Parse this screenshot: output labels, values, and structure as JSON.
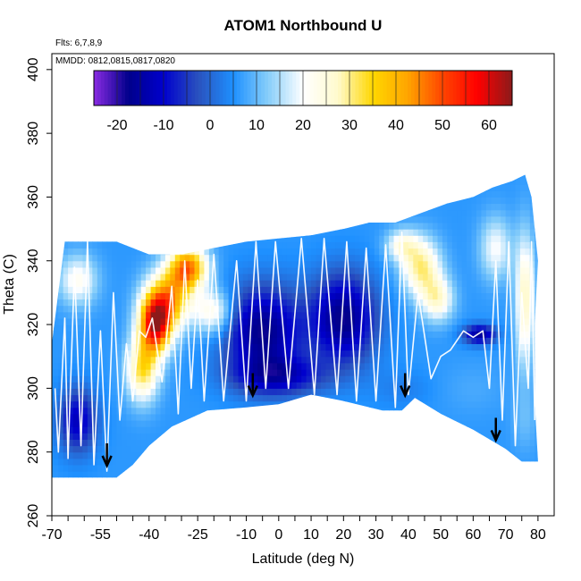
{
  "chart_data": {
    "type": "heatmap",
    "title": "ATOM1 Northbound U",
    "annotations": [
      "Flts: 6,7,8,9",
      "MMDD: 0812,0815,0817,0820"
    ],
    "xlabel": "Latitude (deg N)",
    "ylabel": "Theta (C)",
    "xlim": [
      -70,
      85
    ],
    "ylim": [
      260,
      405
    ],
    "x_ticks": [
      -70,
      -55,
      -40,
      -25,
      -10,
      0,
      10,
      20,
      30,
      40,
      50,
      60,
      70,
      80
    ],
    "x_minor_ticks": [
      -65,
      -60,
      -50,
      -45,
      -35,
      -30,
      -20,
      -15,
      -5,
      5,
      15,
      25,
      35,
      45,
      55,
      65,
      75
    ],
    "y_ticks": [
      260,
      280,
      300,
      320,
      340,
      360,
      380,
      400
    ],
    "colorbar": {
      "min": -25,
      "max": 65,
      "ticks": [
        -20,
        -10,
        0,
        10,
        20,
        30,
        40,
        50,
        60
      ],
      "colors": [
        "#8a2be2",
        "#00008b",
        "#0000cd",
        "#2a52be",
        "#1e90ff",
        "#87cefa",
        "#ffffff",
        "#fffacd",
        "#ffd700",
        "#ffa500",
        "#ff4500",
        "#ff0000",
        "#8b1a1a"
      ]
    },
    "domain_top": [
      [
        -70,
        314
      ],
      [
        -66,
        346
      ],
      [
        -50,
        346
      ],
      [
        -45,
        344
      ],
      [
        -40,
        342
      ],
      [
        -30,
        342
      ],
      [
        -25,
        343
      ],
      [
        -20,
        344
      ],
      [
        -10,
        346
      ],
      [
        0,
        347
      ],
      [
        10,
        348
      ],
      [
        20,
        350
      ],
      [
        28,
        352
      ],
      [
        36,
        352
      ],
      [
        44,
        355
      ],
      [
        52,
        358
      ],
      [
        60,
        360
      ],
      [
        66,
        363
      ],
      [
        72,
        365
      ],
      [
        76,
        367
      ],
      [
        78,
        360
      ],
      [
        80,
        340
      ],
      [
        79,
        320
      ],
      [
        79,
        296
      ]
    ],
    "domain_bottom": [
      [
        -70,
        272
      ],
      [
        -50,
        272
      ],
      [
        -45,
        276
      ],
      [
        -40,
        282
      ],
      [
        -33,
        288
      ],
      [
        -22,
        293
      ],
      [
        -10,
        294
      ],
      [
        0,
        295
      ],
      [
        10,
        298
      ],
      [
        20,
        296
      ],
      [
        32,
        293
      ],
      [
        38,
        293
      ],
      [
        42,
        297
      ],
      [
        50,
        292
      ],
      [
        60,
        287
      ],
      [
        70,
        281
      ],
      [
        75,
        277
      ],
      [
        80,
        277
      ]
    ],
    "u_field_blobs": [
      {
        "lat": -38,
        "theta": 320,
        "dlat": 5,
        "dtheta": 9,
        "u": 55
      },
      {
        "lat": -34,
        "theta": 328,
        "dlat": 7,
        "dtheta": 9,
        "u": 38
      },
      {
        "lat": -28,
        "theta": 338,
        "dlat": 6,
        "dtheta": 7,
        "u": 45
      },
      {
        "lat": -42,
        "theta": 306,
        "dlat": 5,
        "dtheta": 10,
        "u": 33
      },
      {
        "lat": -20,
        "theta": 324,
        "dlat": 6,
        "dtheta": 7,
        "u": 25
      },
      {
        "lat": -62,
        "theta": 334,
        "dlat": 6,
        "dtheta": 8,
        "u": 22
      },
      {
        "lat": -5,
        "theta": 318,
        "dlat": 12,
        "dtheta": 14,
        "u": -18
      },
      {
        "lat": 20,
        "theta": 322,
        "dlat": 10,
        "dtheta": 14,
        "u": -18
      },
      {
        "lat": 0,
        "theta": 304,
        "dlat": 14,
        "dtheta": 6,
        "u": -10
      },
      {
        "lat": 44,
        "theta": 338,
        "dlat": 6,
        "dtheta": 9,
        "u": 30
      },
      {
        "lat": 49,
        "theta": 328,
        "dlat": 5,
        "dtheta": 7,
        "u": 25
      },
      {
        "lat": 38,
        "theta": 345,
        "dlat": 5,
        "dtheta": 5,
        "u": 22
      },
      {
        "lat": 67,
        "theta": 344,
        "dlat": 5,
        "dtheta": 10,
        "u": 20
      },
      {
        "lat": 76,
        "theta": 328,
        "dlat": 3,
        "dtheta": 20,
        "u": 28
      },
      {
        "lat": 62,
        "theta": 317,
        "dlat": 5,
        "dtheta": 3,
        "u": -16
      },
      {
        "lat": 38,
        "theta": 300,
        "dlat": 9,
        "dtheta": 6,
        "u": 3
      },
      {
        "lat": 60,
        "theta": 300,
        "dlat": 10,
        "dtheta": 8,
        "u": 8
      },
      {
        "lat": -62,
        "theta": 290,
        "dlat": 6,
        "dtheta": 10,
        "u": -12
      },
      {
        "lat": 76,
        "theta": 290,
        "dlat": 4,
        "dtheta": 10,
        "u": 10
      }
    ],
    "u_background": 6,
    "flight_track_samples": [
      [
        -69,
        300
      ],
      [
        -68,
        280
      ],
      [
        -66,
        322
      ],
      [
        -65,
        278
      ],
      [
        -63,
        338
      ],
      [
        -61,
        282
      ],
      [
        -59,
        346
      ],
      [
        -57,
        276
      ],
      [
        -55,
        318
      ],
      [
        -53,
        274
      ],
      [
        -51,
        330
      ],
      [
        -49,
        290
      ],
      [
        -47,
        314
      ],
      [
        -45,
        296
      ],
      [
        -43,
        318
      ],
      [
        -41,
        316
      ],
      [
        -39,
        322
      ],
      [
        -36,
        302
      ],
      [
        -33,
        332
      ],
      [
        -31,
        292
      ],
      [
        -29,
        340
      ],
      [
        -27,
        300
      ],
      [
        -25,
        334
      ],
      [
        -23,
        296
      ],
      [
        -20,
        342
      ],
      [
        -17,
        296
      ],
      [
        -13,
        340
      ],
      [
        -10,
        296
      ],
      [
        -7,
        346
      ],
      [
        -4,
        300
      ],
      [
        -1,
        346
      ],
      [
        3,
        300
      ],
      [
        7,
        347
      ],
      [
        11,
        298
      ],
      [
        14,
        347
      ],
      [
        18,
        298
      ],
      [
        21,
        346
      ],
      [
        24,
        296
      ],
      [
        27,
        344
      ],
      [
        30,
        296
      ],
      [
        33,
        345
      ],
      [
        36,
        294
      ],
      [
        38,
        349
      ],
      [
        40,
        298
      ],
      [
        43,
        330
      ],
      [
        47,
        303
      ],
      [
        50,
        310
      ],
      [
        53,
        312
      ],
      [
        57,
        318
      ],
      [
        60,
        316
      ],
      [
        63,
        318
      ],
      [
        65,
        300
      ],
      [
        67,
        340
      ],
      [
        69,
        290
      ],
      [
        71,
        346
      ],
      [
        73,
        282
      ],
      [
        75,
        330
      ],
      [
        77,
        300
      ],
      [
        78,
        346
      ],
      [
        79,
        290
      ]
    ],
    "arrows": [
      {
        "lat": -53,
        "theta": 276,
        "direction": "down"
      },
      {
        "lat": -8,
        "theta": 298,
        "direction": "down"
      },
      {
        "lat": 39,
        "theta": 298,
        "direction": "down"
      },
      {
        "lat": 67,
        "theta": 284,
        "direction": "down"
      }
    ]
  }
}
